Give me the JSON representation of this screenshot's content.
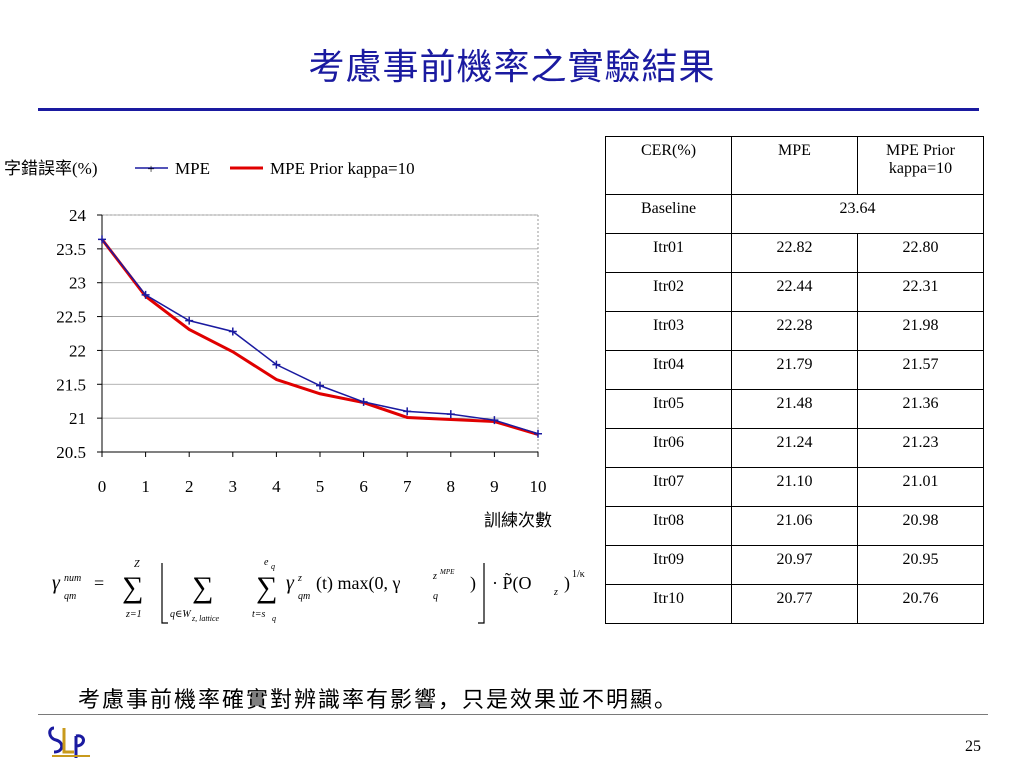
{
  "slide": {
    "title": "考慮事前機率之實驗結果",
    "conclusion": "考慮事前機率確實對辨識率有影響，只是效果並不明顯。",
    "page_number": "25",
    "accent_color": "#1a1aa0"
  },
  "chart_data": {
    "type": "line",
    "ylabel": "字錯誤率(%)",
    "xlabel": "訓練次數",
    "x": [
      0,
      1,
      2,
      3,
      4,
      5,
      6,
      7,
      8,
      9,
      10
    ],
    "x_ticks": [
      "0",
      "1",
      "2",
      "3",
      "4",
      "5",
      "6",
      "7",
      "8",
      "9",
      "10"
    ],
    "ylim": [
      20.5,
      24
    ],
    "y_ticks": [
      "20.5",
      "21",
      "21.5",
      "22",
      "22.5",
      "23",
      "23.5",
      "24"
    ],
    "grid": true,
    "legend_position": "top",
    "series": [
      {
        "name": "MPE",
        "color": "#1a1aa0",
        "marker": "plus",
        "values": [
          23.64,
          22.82,
          22.44,
          22.28,
          21.79,
          21.48,
          21.24,
          21.1,
          21.06,
          20.97,
          20.77
        ]
      },
      {
        "name": "MPE Prior kappa=10",
        "color": "#e00000",
        "marker": "none",
        "values": [
          23.64,
          22.8,
          22.31,
          21.98,
          21.57,
          21.36,
          21.23,
          21.01,
          20.98,
          20.95,
          20.76
        ]
      }
    ]
  },
  "table": {
    "header": [
      "CER(%)",
      "MPE",
      "MPE Prior kappa=10"
    ],
    "baseline": {
      "label": "Baseline",
      "value": "23.64"
    },
    "rows": [
      [
        "Itr01",
        "22.82",
        "22.80"
      ],
      [
        "Itr02",
        "22.44",
        "22.31"
      ],
      [
        "Itr03",
        "22.28",
        "21.98"
      ],
      [
        "Itr04",
        "21.79",
        "21.57"
      ],
      [
        "Itr05",
        "21.48",
        "21.36"
      ],
      [
        "Itr06",
        "21.24",
        "21.23"
      ],
      [
        "Itr07",
        "21.10",
        "21.01"
      ],
      [
        "Itr08",
        "21.06",
        "20.98"
      ],
      [
        "Itr09",
        "20.97",
        "20.95"
      ],
      [
        "Itr10",
        "20.77",
        "20.76"
      ]
    ]
  },
  "formula": {
    "lhs_symbol": "γ",
    "lhs_sup": "num",
    "lhs_sub": "qm",
    "sum1_top": "Z",
    "sum1_bottom": "z=1",
    "sum2_bottom": "q∈W",
    "sum2_bottom_sub": "z, lattice",
    "sum3_top": "e",
    "sum3_top_sub": "q",
    "sum3_bottom": "t=s",
    "sum3_bottom_sub": "q",
    "term_gamma_sup": "z",
    "term_gamma_sub": "qm",
    "term_arg": "(t) max(0, γ",
    "term_gamma2_sup": "z",
    "term_gamma2_supsup": "MPE",
    "term_gamma2_sub": "q",
    "close": ")",
    "prior": "· P̃(O",
    "prior_sub": "z",
    "prior_close": ")",
    "prior_exp": "1/κ"
  },
  "logo_text": "SLP"
}
